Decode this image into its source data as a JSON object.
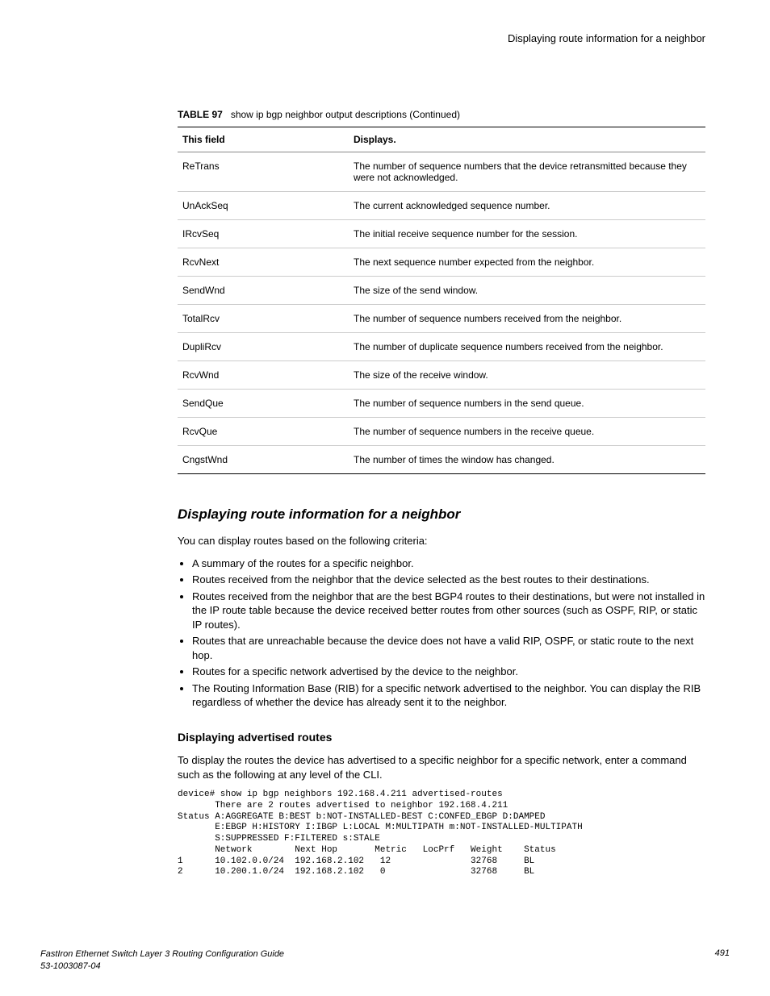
{
  "header": {
    "right_text": "Displaying route information for a neighbor"
  },
  "table": {
    "label": "TABLE 97",
    "caption": "show ip bgp neighbor output descriptions (Continued)",
    "head_field": "This field",
    "head_displays": "Displays.",
    "rows": [
      {
        "field": "ReTrans",
        "desc": "The number of sequence numbers that the device retransmitted because they were not acknowledged."
      },
      {
        "field": "UnAckSeq",
        "desc": "The current acknowledged sequence number."
      },
      {
        "field": "IRcvSeq",
        "desc": "The initial receive sequence number for the session."
      },
      {
        "field": "RcvNext",
        "desc": "The next sequence number expected from the neighbor."
      },
      {
        "field": "SendWnd",
        "desc": "The size of the send window."
      },
      {
        "field": "TotalRcv",
        "desc": "The number of sequence numbers received from the neighbor."
      },
      {
        "field": "DupliRcv",
        "desc": "The number of duplicate sequence numbers received from the neighbor."
      },
      {
        "field": "RcvWnd",
        "desc": "The size of the receive window."
      },
      {
        "field": "SendQue",
        "desc": "The number of sequence numbers in the send queue."
      },
      {
        "field": "RcvQue",
        "desc": "The number of sequence numbers in the receive queue."
      },
      {
        "field": "CngstWnd",
        "desc": "The number of times the window has changed."
      }
    ]
  },
  "section": {
    "title": "Displaying route information for a neighbor",
    "intro": "You can display routes based on the following criteria:",
    "bullets": [
      "A summary of the routes for a specific neighbor.",
      "Routes received from the neighbor that the device selected as the best routes to their destinations.",
      "Routes received from the neighbor that are the best BGP4 routes to their destinations, but were not installed in the IP route table because the device received better routes from other sources (such as OSPF, RIP, or static IP routes).",
      "Routes that are unreachable because the device does not have a valid RIP, OSPF, or static route to the next hop.",
      "Routes for a specific network advertised by the device to the neighbor.",
      "The Routing Information Base (RIB) for a specific network advertised to the neighbor. You can display the RIB regardless of whether the device has already sent it to the neighbor."
    ]
  },
  "sub": {
    "title": "Displaying advertised routes",
    "body": "To display the routes the device has advertised to a specific neighbor for a specific network, enter a command such as the following at any level of the CLI."
  },
  "cli": "device# show ip bgp neighbors 192.168.4.211 advertised-routes\n       There are 2 routes advertised to neighbor 192.168.4.211\nStatus A:AGGREGATE B:BEST b:NOT-INSTALLED-BEST C:CONFED_EBGP D:DAMPED\n       E:EBGP H:HISTORY I:IBGP L:LOCAL M:MULTIPATH m:NOT-INSTALLED-MULTIPATH\n       S:SUPPRESSED F:FILTERED s:STALE\n       Network        Next Hop       Metric   LocPrf   Weight    Status\n1      10.102.0.0/24  192.168.2.102   12               32768     BL\n2      10.200.1.0/24  192.168.2.102   0                32768     BL",
  "footer": {
    "guide": "FastIron Ethernet Switch Layer 3 Routing Configuration Guide",
    "docnum": "53-1003087-04",
    "page": "491"
  }
}
